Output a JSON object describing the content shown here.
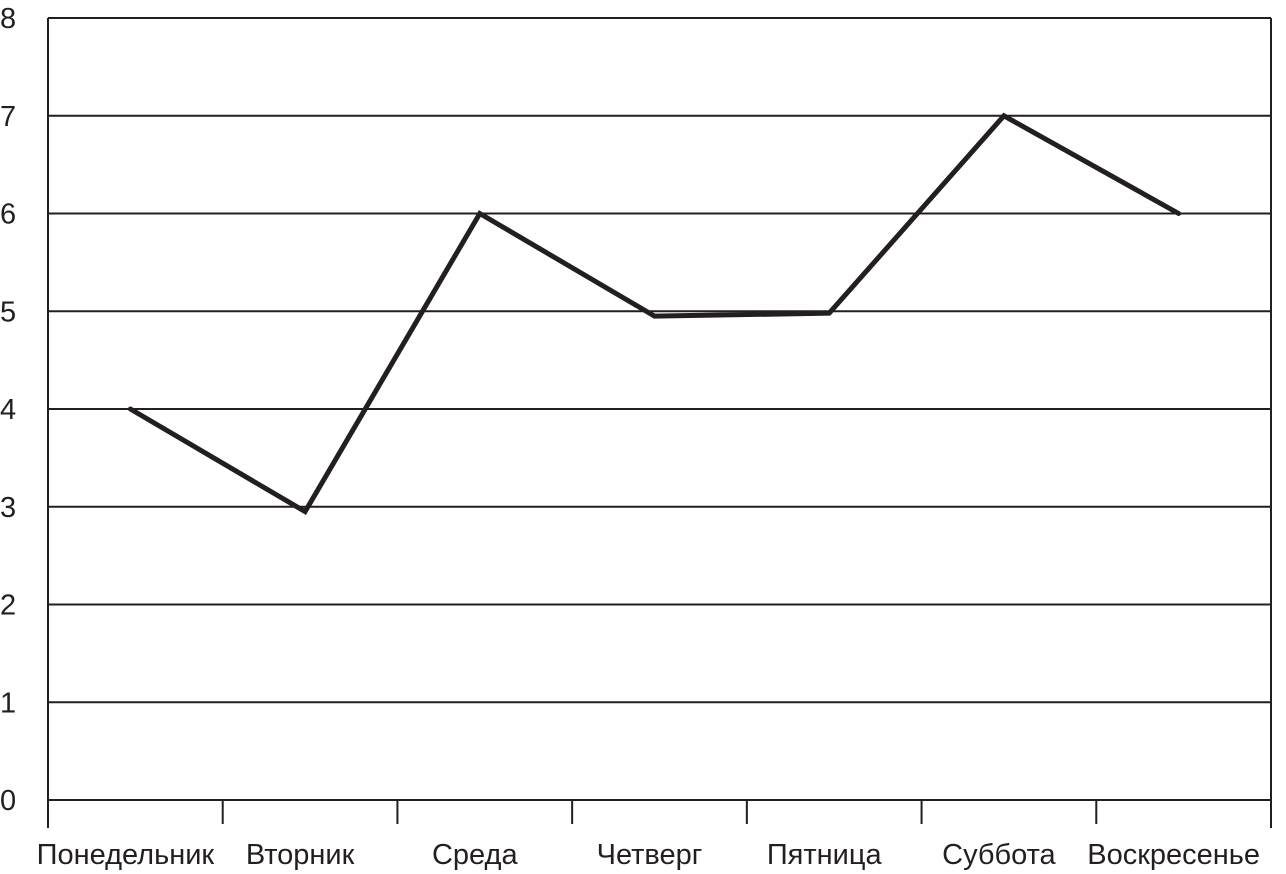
{
  "chart_data": {
    "type": "line",
    "title": "",
    "xlabel": "",
    "ylabel": "",
    "categories": [
      "Понедельник",
      "Вторник",
      "Среда",
      "Четверг",
      "Пятница",
      "Суббота",
      "Воскресенье"
    ],
    "series": [
      {
        "values": [
          4,
          2.95,
          6,
          4.95,
          4.98,
          7,
          6
        ]
      }
    ],
    "ylim": [
      0,
      8
    ],
    "yticks": [
      0,
      1,
      2,
      3,
      4,
      5,
      6,
      7,
      8
    ],
    "grid": "horizontal",
    "legend": "none",
    "colors": {
      "line": "#231f20",
      "grid": "#231f20",
      "text": "#231f20"
    }
  }
}
